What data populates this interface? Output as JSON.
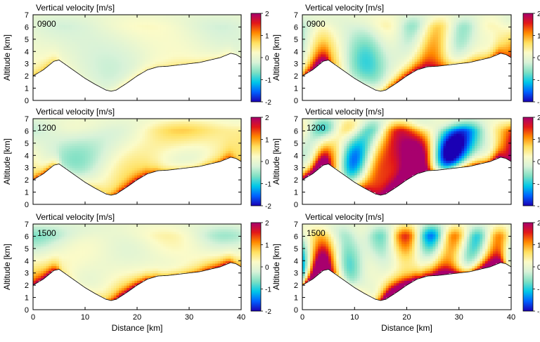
{
  "figure": {
    "panel_title": "Vertical velocity [m/s]",
    "y_axis_label": "Altitude [km]",
    "x_axis_label": "Distance [km]"
  },
  "chart_data": {
    "type": "heatmap",
    "layout": "3 rows x 2 columns of altitude-distance cross sections",
    "x_ticks": [
      0,
      10,
      20,
      30,
      40
    ],
    "y_ticks": [
      0,
      1,
      2,
      3,
      4,
      5,
      6,
      7
    ],
    "xlim": [
      0,
      40
    ],
    "ylim": [
      0,
      7
    ],
    "colorbar": {
      "range": [
        -2,
        2
      ],
      "ticks": [
        2,
        1,
        0,
        -1,
        -2
      ],
      "colors": [
        "#1a00b4",
        "#0060ff",
        "#00c8e8",
        "#7ee0c4",
        "#d8f2d8",
        "#fbfbc8",
        "#ffe060",
        "#ff8a00",
        "#e21818",
        "#a8006e"
      ]
    },
    "terrain_km": {
      "distance": [
        0,
        2,
        4,
        5,
        6,
        8,
        10,
        12,
        14,
        15,
        16,
        18,
        20,
        22,
        24,
        26,
        28,
        30,
        32,
        34,
        36,
        38,
        39,
        40
      ],
      "altitude": [
        2.0,
        2.5,
        3.2,
        3.3,
        3.0,
        2.4,
        1.8,
        1.3,
        0.85,
        0.75,
        0.85,
        1.4,
        2.0,
        2.5,
        2.75,
        2.8,
        2.9,
        3.0,
        3.1,
        3.3,
        3.5,
        3.85,
        3.75,
        3.5
      ]
    },
    "panels": [
      {
        "time": "0900",
        "column": "left"
      },
      {
        "time": "0900",
        "column": "right"
      },
      {
        "time": "1200",
        "column": "left"
      },
      {
        "time": "1200",
        "column": "right"
      },
      {
        "time": "1500",
        "column": "left"
      },
      {
        "time": "1500",
        "column": "right"
      }
    ]
  }
}
